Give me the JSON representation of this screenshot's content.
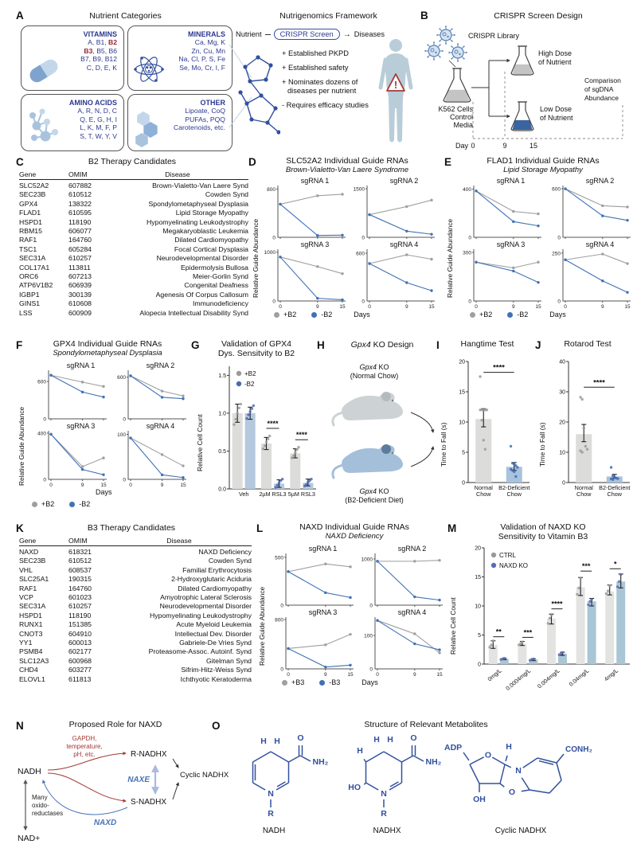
{
  "A": {
    "label": "A",
    "title": "Nutrient Categories",
    "boxes": [
      {
        "name": "VITAMINS",
        "lines": [
          "A, B1, *B2*",
          "*B3*, B5, B6",
          "B7, B9, B12",
          "C, D, E, K"
        ]
      },
      {
        "name": "MINERALS",
        "lines": [
          "Ca, Mg, K",
          "Zn, Cu, Mn",
          "Na, Cl, P, S, Fe",
          "Se, Mo, Cr, I, F"
        ]
      },
      {
        "name": "AMINO ACIDS",
        "lines": [
          "A, R, N, D, C",
          "Q, E, G, H, I",
          "L, K, M, F, P",
          "S, T, W, Y, V"
        ]
      },
      {
        "name": "OTHER",
        "lines": [
          "Lipoate, CoQ",
          "PUFAs, PQQ",
          "Carotenoids, etc."
        ]
      }
    ]
  },
  "framework": {
    "title": "Nutrigenomics Framework",
    "flow": {
      "from": "Nutrient",
      "pill": "CRISPR Screen",
      "arrow": "→",
      "to": "Diseases"
    },
    "bullets": [
      "+ Established PKPD",
      "+ Established safety",
      "+ Nominates dozens of diseases per nutrient",
      "- Requires efficacy studies"
    ],
    "warning": "!"
  },
  "B": {
    "label": "B",
    "title": "CRISPR Screen Design",
    "library": "CRISPR Library",
    "control": [
      "K562 Cells",
      "Control",
      "Media"
    ],
    "high": [
      "High Dose",
      "of Nutrient"
    ],
    "low": [
      "Low Dose",
      "of Nutrient"
    ],
    "comparison": [
      "Comparison",
      "of sgDNA",
      "Abundance"
    ],
    "day": "Day",
    "days": [
      "0",
      "9",
      "15"
    ]
  },
  "C": {
    "label": "C",
    "title": "B2 Therapy Candidates",
    "columns": [
      "Gene",
      "OMIM",
      "Disease"
    ],
    "rows": [
      [
        "SLC52A2",
        "607882",
        "Brown-Vialetto-Van Laere Synd"
      ],
      [
        "SEC23B",
        "610512",
        "Cowden Synd"
      ],
      [
        "GPX4",
        "138322",
        "Spondylometaphyseal Dysplasia"
      ],
      [
        "FLAD1",
        "610595",
        "Lipid Storage Myopathy"
      ],
      [
        "HSPD1",
        "118190",
        "Hypomyelinating Leukodystrophy"
      ],
      [
        "RBM15",
        "606077",
        "Megakaryoblastic Leukemia"
      ],
      [
        "RAF1",
        "164760",
        "Dilated Cardiomyopathy"
      ],
      [
        "TSC1",
        "605284",
        "Focal Cortical Dysplasia"
      ],
      [
        "SEC31A",
        "610257",
        "Neurodevelopmental Disorder"
      ],
      [
        "COL17A1",
        "113811",
        "Epidermolysis Bullosa"
      ],
      [
        "ORC6",
        "607213",
        "Meier-Gorlin Synd"
      ],
      [
        "ATP6V1B2",
        "606939",
        "Congenital Deafness"
      ],
      [
        "IGBP1",
        "300139",
        "Agenesis Of Corpus Callosum"
      ],
      [
        "GINS1",
        "610608",
        "Immunodeficiency"
      ],
      [
        "LSS",
        "600909",
        "Alopecia Intellectual Disability Synd"
      ]
    ]
  },
  "K": {
    "label": "K",
    "title": "B3 Therapy Candidates",
    "columns": [
      "Gene",
      "OMIM",
      "Disease"
    ],
    "rows": [
      [
        "NAXD",
        "618321",
        "NAXD Deficiency"
      ],
      [
        "SEC23B",
        "610512",
        "Cowden Synd"
      ],
      [
        "VHL",
        "608537",
        "Familial Erythrocytosis"
      ],
      [
        "SLC25A1",
        "190315",
        "2-Hydroxyglutaric Aciduria"
      ],
      [
        "RAF1",
        "164760",
        "Dilated Cardiomyopathy"
      ],
      [
        "VCP",
        "601023",
        "Amyotrophic Lateral Sclerosis"
      ],
      [
        "SEC31A",
        "610257",
        "Neurodevelopmental Disorder"
      ],
      [
        "HSPD1",
        "118190",
        "Hypomyelinating Leukodystrophy"
      ],
      [
        "RUNX1",
        "151385",
        "Acute Myeloid Leukemia"
      ],
      [
        "CNOT3",
        "604910",
        "Intellectual Dev. Disorder"
      ],
      [
        "YY1",
        "600013",
        "Gabriele-De Vries Synd"
      ],
      [
        "PSMB4",
        "602177",
        "Proteasome-Assoc. Autoinf. Synd"
      ],
      [
        "SLC12A3",
        "600968",
        "Gitelman Synd"
      ],
      [
        "CHD4",
        "603277",
        "Sifrim-Hitz-Weiss Synd"
      ],
      [
        "ELOVL1",
        "611813",
        "Ichthyotic Keratoderma"
      ]
    ]
  },
  "D": {
    "label": "D",
    "title": "SLC52A2 Individual Guide RNAs",
    "subtitle": "Brown-Vialetto-Van Laere Syndrome",
    "ylabel": "Relative Guide Abundance",
    "xlabel": "Days",
    "x": [
      0,
      9,
      15
    ],
    "colors": {
      "plus": "#9f9f9f",
      "minus": "#3f72b5"
    },
    "legend": [
      {
        "name": "+B2"
      },
      {
        "name": "-B2"
      }
    ],
    "chart_data": {
      "type": "line",
      "x": [
        0,
        9,
        15
      ],
      "subplots": [
        {
          "name": "sgRNA 1",
          "ytick": 800,
          "ymax": 860,
          "plus": [
            550,
            690,
            715
          ],
          "minus": [
            550,
            30,
            35
          ]
        },
        {
          "name": "sgRNA 2",
          "ytick": 1500,
          "ymax": 1600,
          "plus": [
            700,
            950,
            1150
          ],
          "minus": [
            700,
            190,
            95
          ]
        },
        {
          "name": "sgRNA 3",
          "ytick": 1000,
          "ymax": 1060,
          "plus": [
            900,
            705,
            560
          ],
          "minus": [
            900,
            55,
            25
          ]
        },
        {
          "name": "sgRNA 4",
          "ytick": 600,
          "ymax": 650,
          "plus": [
            470,
            580,
            525
          ],
          "minus": [
            470,
            230,
            130
          ]
        }
      ]
    }
  },
  "E": {
    "label": "E",
    "title": "FLAD1 Individual Guide RNAs",
    "subtitle": "Lipid Storage Myopathy",
    "ylabel": "Relative Guide Abundance",
    "xlabel": "Days",
    "x": [
      0,
      9,
      15
    ],
    "colors": {
      "plus": "#9f9f9f",
      "minus": "#3f72b5"
    },
    "legend": [
      {
        "name": "+B2"
      },
      {
        "name": "-B2"
      }
    ],
    "chart_data": {
      "type": "line",
      "x": [
        0,
        9,
        15
      ],
      "subplots": [
        {
          "name": "sgRNA 1",
          "ytick": 400,
          "ymax": 430,
          "plus": [
            385,
            215,
            195
          ],
          "minus": [
            385,
            130,
            95
          ]
        },
        {
          "name": "sgRNA 2",
          "ytick": 600,
          "ymax": 640,
          "plus": [
            600,
            390,
            375
          ],
          "minus": [
            600,
            265,
            210
          ]
        },
        {
          "name": "sgRNA 3",
          "ytick": 300,
          "ymax": 320,
          "plus": [
            240,
            205,
            240
          ],
          "minus": [
            240,
            185,
            115
          ]
        },
        {
          "name": "sgRNA 4",
          "ytick": 250,
          "ymax": 270,
          "plus": [
            215,
            245,
            195
          ],
          "minus": [
            215,
            105,
            45
          ]
        }
      ]
    }
  },
  "F": {
    "label": "F",
    "title": "GPX4 Individual Guide RNAs",
    "subtitle": "Spondylometaphyseal Dysplasia",
    "ylabel": "Relative Guide Abundance",
    "xlabel": "Days",
    "x": [
      0,
      9,
      15
    ],
    "colors": {
      "plus": "#9f9f9f",
      "minus": "#3f72b5"
    },
    "legend": [
      {
        "name": "+B2"
      },
      {
        "name": "-B2"
      }
    ],
    "chart_data": {
      "type": "line",
      "x": [
        0,
        9,
        15
      ],
      "subplots": [
        {
          "name": "sgRNA 1",
          "ytick": 600,
          "ymax": 780,
          "plus": [
            700,
            590,
            520
          ],
          "minus": [
            700,
            430,
            350
          ]
        },
        {
          "name": "sgRNA 2",
          "ytick": 600,
          "ymax": 700,
          "plus": [
            620,
            400,
            330
          ],
          "minus": [
            620,
            310,
            290
          ]
        },
        {
          "name": "sgRNA 3",
          "ytick": 400,
          "ymax": 420,
          "plus": [
            390,
            110,
            185
          ],
          "minus": [
            390,
            85,
            40
          ]
        },
        {
          "name": "sgRNA 4",
          "ytick": 100,
          "ymax": 108,
          "plus": [
            92,
            55,
            30
          ],
          "minus": [
            92,
            10,
            4
          ]
        }
      ]
    }
  },
  "L": {
    "label": "L",
    "title": "NAXD Individual Guide RNAs",
    "subtitle": "NAXD Deficiency",
    "ylabel": "Relative Guide Abundance",
    "xlabel": "Days",
    "x": [
      0,
      9,
      15
    ],
    "colors": {
      "plus": "#9f9f9f",
      "minus": "#3f72b5"
    },
    "legend": [
      {
        "name": "+B3"
      },
      {
        "name": "-B3"
      }
    ],
    "chart_data": {
      "type": "line",
      "x": [
        0,
        9,
        15
      ],
      "subplots": [
        {
          "name": "sgRNA 1",
          "ytick": 500,
          "ymax": 540,
          "plus": [
            350,
            430,
            400
          ],
          "minus": [
            350,
            130,
            80
          ]
        },
        {
          "name": "sgRNA 2",
          "ytick": 1000,
          "ymax": 1120,
          "plus": [
            950,
            950,
            970
          ],
          "minus": [
            950,
            180,
            110
          ]
        },
        {
          "name": "sgRNA 3",
          "ytick": 800,
          "ymax": 840,
          "plus": [
            330,
            390,
            560
          ],
          "minus": [
            330,
            30,
            60
          ]
        },
        {
          "name": "sgRNA 4",
          "ytick": 100,
          "ymax": 155,
          "plus": [
            145,
            105,
            48
          ],
          "minus": [
            145,
            75,
            57
          ]
        }
      ]
    }
  },
  "G": {
    "label": "G",
    "title": "Validation of GPX4\nDys. Sensitvity to B2",
    "ylabel": "Relative Cell Count",
    "ymax": 1.62,
    "yticks": [
      "0.0",
      "0.5",
      "1.0",
      "1.5"
    ],
    "legend": [
      {
        "name": "+B2",
        "color": "#9a9a9a"
      },
      {
        "name": "-B2",
        "color": "#4a69b2"
      }
    ],
    "categories": [
      "Veh",
      "2µM RSL3",
      "5µM RSL3"
    ],
    "series": [
      {
        "name": "+B2",
        "fill": "#dcdcda",
        "dot": "#9a9a9a",
        "values": [
          1.0,
          0.6,
          0.47
        ],
        "errors": [
          [
            0.88,
            1.12
          ],
          [
            0.52,
            0.68
          ],
          [
            0.41,
            0.53
          ]
        ],
        "points": [
          [
            0.85,
            0.92,
            1.0,
            1.07,
            1.12
          ],
          [
            0.53,
            0.57,
            0.62,
            0.66,
            0.7
          ],
          [
            0.41,
            0.44,
            0.48,
            0.52,
            0.55
          ]
        ]
      },
      {
        "name": "-B2",
        "fill": "#b5c8de",
        "dot": "#4a69b2",
        "values": [
          1.0,
          0.07,
          0.08
        ],
        "errors": [
          [
            0.92,
            1.08
          ],
          [
            0.02,
            0.12
          ],
          [
            0.04,
            0.13
          ]
        ],
        "points": [
          [
            0.93,
            0.98,
            1.02,
            1.06,
            1.1
          ],
          [
            0.02,
            0.05,
            0.08,
            0.11,
            0.13
          ],
          [
            0.04,
            0.06,
            0.09,
            0.11,
            0.13
          ]
        ]
      }
    ],
    "sig": [
      "",
      "****",
      "****"
    ],
    "sigy": [
      0,
      0.8,
      0.65
    ]
  },
  "H": {
    "label": "H",
    "title": "_Gpx4_ KO Design",
    "top": [
      "_Gpx4_ KO",
      "(Normal Chow)"
    ],
    "bottom": [
      "_Gpx4_ KO",
      "(B2-Deficient Diet)"
    ]
  },
  "I": {
    "label": "I",
    "title": "Hangtime Test",
    "ylabel": "Time to Fall (s)",
    "ymax": 20,
    "yticks": [
      "0",
      "5",
      "10",
      "15",
      "20"
    ],
    "categories": [
      "Normal\nChow",
      "B2-Deficient\nChow"
    ],
    "series": [
      {
        "fill": [
          "#dcdcda",
          "#a9c2dd"
        ],
        "dot": [
          "#9a9a9a",
          "#3f6db8"
        ],
        "values": [
          10.5,
          2.6
        ],
        "errors": [
          [
            9.2,
            12.2
          ],
          [
            2.0,
            3.3
          ]
        ],
        "points": [
          [
            17.5,
            12,
            12,
            12,
            12,
            12,
            10.3,
            7,
            5.5
          ],
          [
            6,
            3.2,
            3,
            2.8,
            2.5,
            2.2,
            2,
            1.8,
            1
          ]
        ]
      }
    ],
    "span_sig": {
      "label": "****",
      "y": 18.2
    }
  },
  "J": {
    "label": "J",
    "title": "Rotarod Test",
    "ylabel": "Time to Fall (s)",
    "ymax": 40,
    "yticks": [
      "0",
      "10",
      "20",
      "30",
      "40"
    ],
    "categories": [
      "Normal\nChow",
      "B2-Deficient\nChow"
    ],
    "series": [
      {
        "fill": [
          "#dcdcda",
          "#a9c2dd"
        ],
        "dot": [
          "#9a9a9a",
          "#3f6db8"
        ],
        "values": [
          16,
          2
        ],
        "errors": [
          [
            13.5,
            19.2
          ],
          [
            1.4,
            2.7
          ]
        ],
        "points": [
          [
            28.2,
            27.5,
            18,
            12,
            11,
            10.5,
            10
          ],
          [
            5,
            2.2,
            1.8,
            1.5,
            1.3,
            1.2,
            1
          ]
        ]
      }
    ],
    "span_sig": {
      "label": "****",
      "y": 31.5
    }
  },
  "M": {
    "label": "M",
    "title": "Validation of NAXD KO\nSensitivity to Vitamin B3",
    "ylabel": "Relative Cell Count",
    "ymax": 20,
    "yticks": [
      "0",
      "5",
      "10",
      "15",
      "20"
    ],
    "legend": [
      {
        "name": "CTRL",
        "color": "#9a9a9a"
      },
      {
        "name": "NAXD KO",
        "color": "#5a6cb8"
      }
    ],
    "categories": [
      "0mg/L",
      "0.0004mg/L",
      "0.004mg/L",
      "0.04mg/L",
      "4mg/L"
    ],
    "series": [
      {
        "name": "CTRL",
        "fill": "#e3e3e1",
        "dot": "#9a9a9a",
        "values": [
          3.3,
          3.5,
          7.8,
          13.2,
          12.5
        ],
        "errors": [
          [
            2.7,
            4.0
          ],
          [
            3.2,
            3.9
          ],
          [
            6.9,
            8.6
          ],
          [
            11.8,
            14.9
          ],
          [
            11.9,
            13.6
          ]
        ],
        "points": [
          [
            2.9,
            3.3,
            4.0
          ],
          [
            3.3,
            3.5,
            3.8
          ],
          [
            7.0,
            7.9,
            8.4
          ],
          [
            12.0,
            13.1,
            14.8
          ],
          [
            12.1,
            12.6,
            13.5
          ]
        ]
      },
      {
        "name": "NAXD KO",
        "fill": "#a9c6d6",
        "dot": "#5a6cb8",
        "values": [
          0.9,
          0.8,
          1.8,
          10.8,
          14.2
        ],
        "errors": [
          [
            0.75,
            1.0
          ],
          [
            0.6,
            0.9
          ],
          [
            1.5,
            2.05
          ],
          [
            10.0,
            11.3
          ],
          [
            13.1,
            15.5
          ]
        ],
        "points": [
          [
            0.8,
            0.9,
            1.0
          ],
          [
            0.65,
            0.8,
            0.9
          ],
          [
            1.6,
            1.8,
            2.0
          ],
          [
            10.2,
            10.8,
            11.1
          ],
          [
            13.3,
            14.2,
            15.4
          ]
        ]
      }
    ],
    "sig": [
      "**",
      "***",
      "****",
      "***",
      "*"
    ],
    "sigy": [
      4.7,
      4.6,
      9.5,
      16.0,
      16.4
    ]
  },
  "N": {
    "label": "N",
    "title": "Proposed Role for NAXD",
    "nodes": {
      "nadh": "NADH",
      "nad": "NAD+",
      "r": "R-NADHX",
      "s": "S-NADHX",
      "cyclic": "Cyclic NADHX"
    },
    "stress": "GAPDH,\ntemperature,\npH, etc.",
    "naxe": "NAXE",
    "naxd": "NAXD",
    "oxido": "Many\noxido-\nreductases"
  },
  "O": {
    "label": "O",
    "title": "Structure of Relevant Metabolites",
    "structures": [
      {
        "name": "NADH",
        "labels": {
          "h1": "H",
          "h2": "H",
          "o": "O",
          "nh2": "NH₂",
          "n": "N",
          "r": "R"
        }
      },
      {
        "name": "NADHX",
        "labels": {
          "h1": "H",
          "h2": "H",
          "h3": "H",
          "ho": "HO",
          "o": "O",
          "nh2": "NH₂",
          "n": "N",
          "r": "R"
        }
      },
      {
        "name": "Cyclic NADHX",
        "labels": {
          "adp": "ADP",
          "o1": "O",
          "h": "H",
          "n": "N",
          "o2": "O",
          "oh": "OH",
          "conh2": "CONH₂"
        }
      }
    ]
  }
}
